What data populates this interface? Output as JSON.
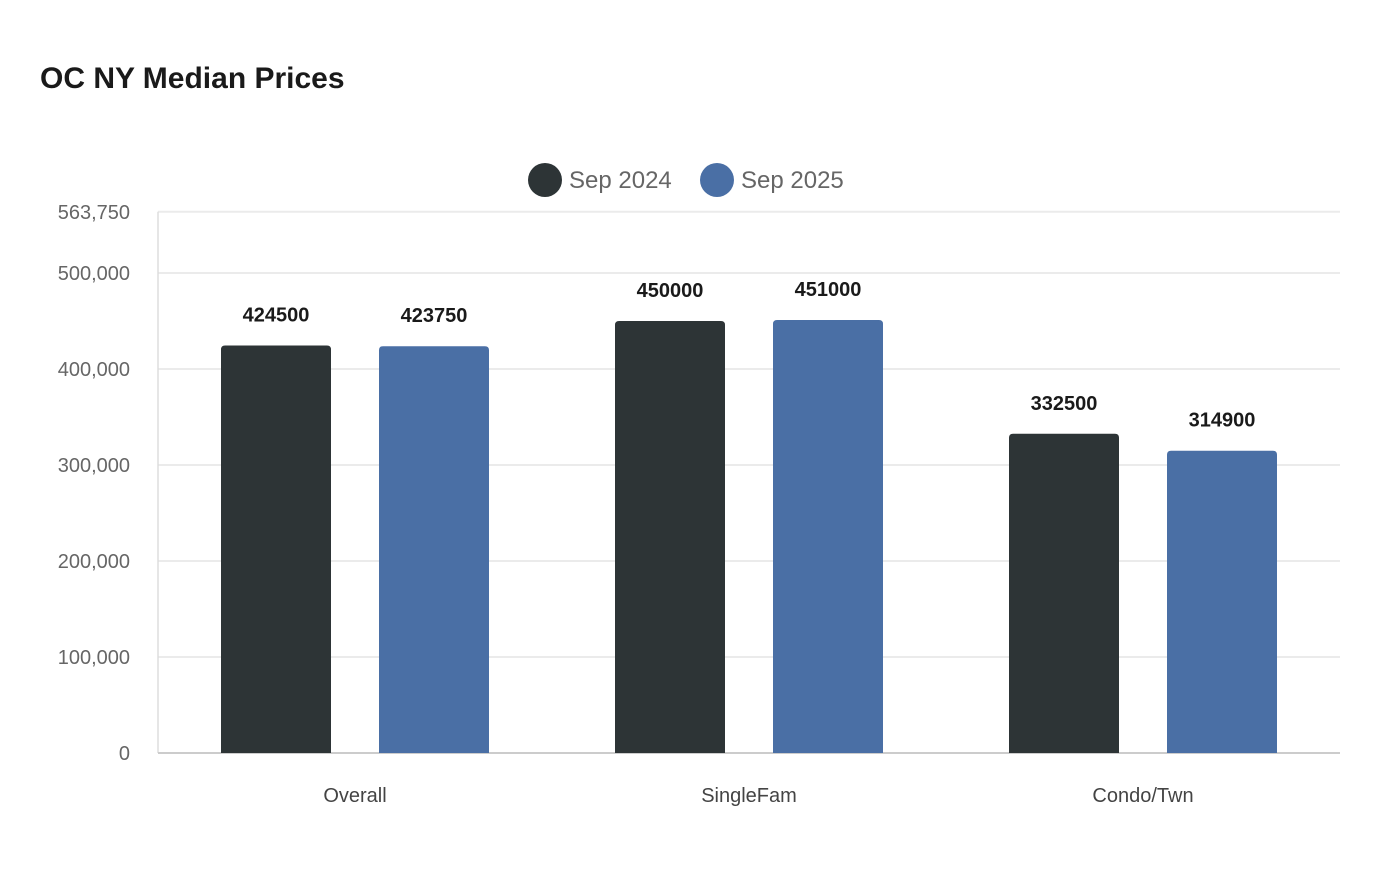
{
  "chart_data": {
    "type": "bar",
    "title": "OC NY Median Prices",
    "categories": [
      "Overall",
      "SingleFam",
      "Condo/Twn"
    ],
    "series": [
      {
        "name": "Sep 2024",
        "color": "#2d3436",
        "values": [
          424500,
          450000,
          332500
        ]
      },
      {
        "name": "Sep 2025",
        "color": "#4a6fa5",
        "values": [
          423750,
          451000,
          314900
        ]
      }
    ],
    "ylim": [
      0,
      563750
    ],
    "yticks": [
      0,
      100000,
      200000,
      300000,
      400000,
      500000,
      563750
    ],
    "ytick_labels": [
      "0",
      "100,000",
      "200,000",
      "300,000",
      "400,000",
      "500,000",
      "563,750"
    ],
    "grid": true,
    "legend": "top-center",
    "data_labels": true
  }
}
